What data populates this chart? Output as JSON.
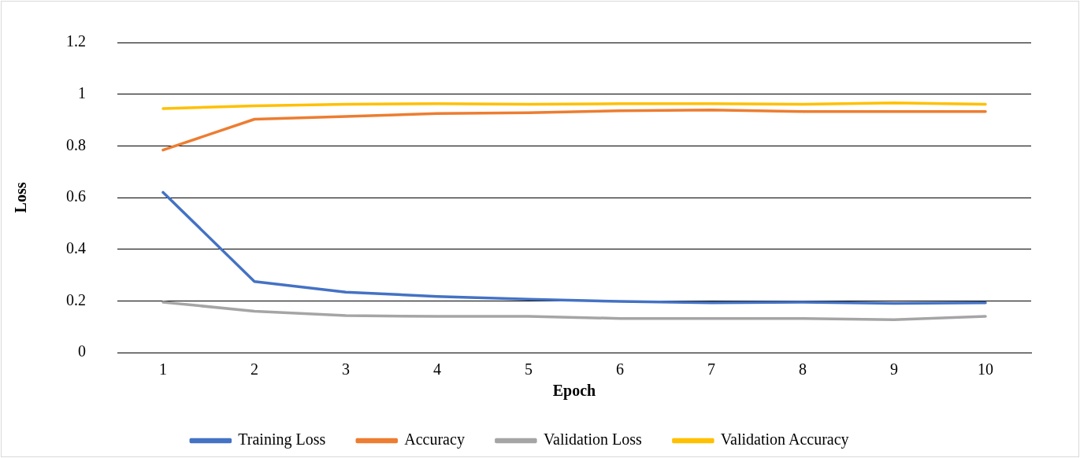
{
  "chart_data": {
    "type": "line",
    "xlabel": "Epoch",
    "ylabel": "Loss",
    "categories": [
      "1",
      "2",
      "3",
      "4",
      "5",
      "6",
      "7",
      "8",
      "9",
      "10"
    ],
    "series": [
      {
        "name": "Training Loss",
        "color": "#4472c4",
        "values": [
          0.62,
          0.275,
          0.234,
          0.217,
          0.206,
          0.198,
          0.193,
          0.195,
          0.19,
          0.193
        ]
      },
      {
        "name": "Accuracy",
        "color": "#ed7d31",
        "values": [
          0.784,
          0.903,
          0.914,
          0.925,
          0.928,
          0.936,
          0.939,
          0.933,
          0.933,
          0.933
        ]
      },
      {
        "name": "Validation Loss",
        "color": "#a5a5a5",
        "values": [
          0.195,
          0.16,
          0.143,
          0.14,
          0.14,
          0.132,
          0.132,
          0.132,
          0.127,
          0.14
        ]
      },
      {
        "name": "Validation Accuracy",
        "color": "#ffc000",
        "values": [
          0.944,
          0.955,
          0.961,
          0.963,
          0.961,
          0.963,
          0.963,
          0.961,
          0.966,
          0.961
        ]
      }
    ],
    "ylim": [
      0,
      1.2
    ],
    "yticks": [
      0,
      0.2,
      0.4,
      0.6,
      0.8,
      1,
      1.2
    ],
    "grid": "y",
    "legend": "bottom",
    "marker": "none",
    "line_style": "solid"
  }
}
